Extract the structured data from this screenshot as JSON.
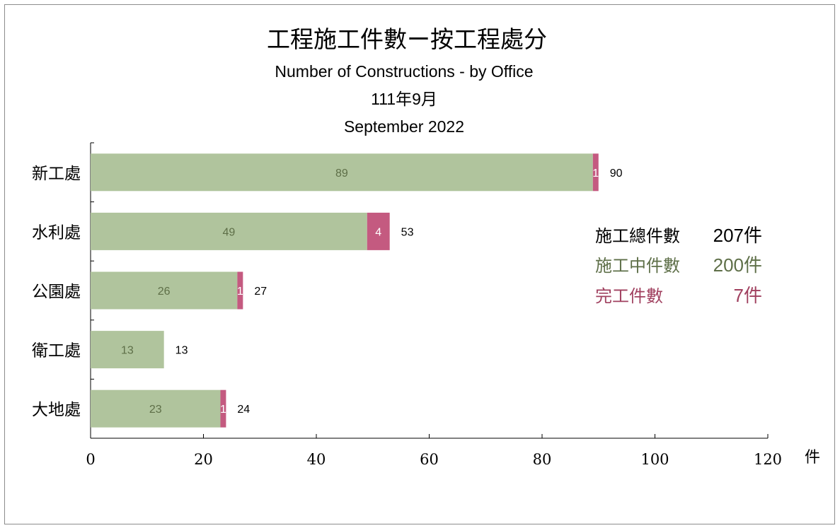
{
  "chart_data": {
    "type": "bar",
    "orientation": "horizontal",
    "stacked": true,
    "title": "工程施工件數ー按工程處分",
    "subtitle_en": "Number of Constructions - by Office",
    "period_zh": "111年9月",
    "period_en": "September 2022",
    "categories": [
      "新工處",
      "水利處",
      "公園處",
      "衛工處",
      "大地處"
    ],
    "series": [
      {
        "values": [
          89,
          49,
          26,
          13,
          23
        ],
        "color": "#b0c49d",
        "label_color": "#5e6f48"
      },
      {
        "values": [
          1,
          4,
          1,
          0,
          1
        ],
        "color": "#c45a80",
        "label_color": "#ffffff"
      }
    ],
    "totals": [
      90,
      53,
      27,
      13,
      24
    ],
    "xlim": [
      0,
      120
    ],
    "xticks": [
      "0",
      "20",
      "40",
      "60",
      "80",
      "100",
      "120"
    ],
    "xunit": "件",
    "grid": false,
    "summary": [
      {
        "label": "施工總件數",
        "value": "207件",
        "color": "#000000"
      },
      {
        "label": "施工中件數",
        "value": "200件",
        "color": "#5e6f48"
      },
      {
        "label": "完工件數",
        "value": "7件",
        "color": "#a0405f"
      }
    ]
  }
}
